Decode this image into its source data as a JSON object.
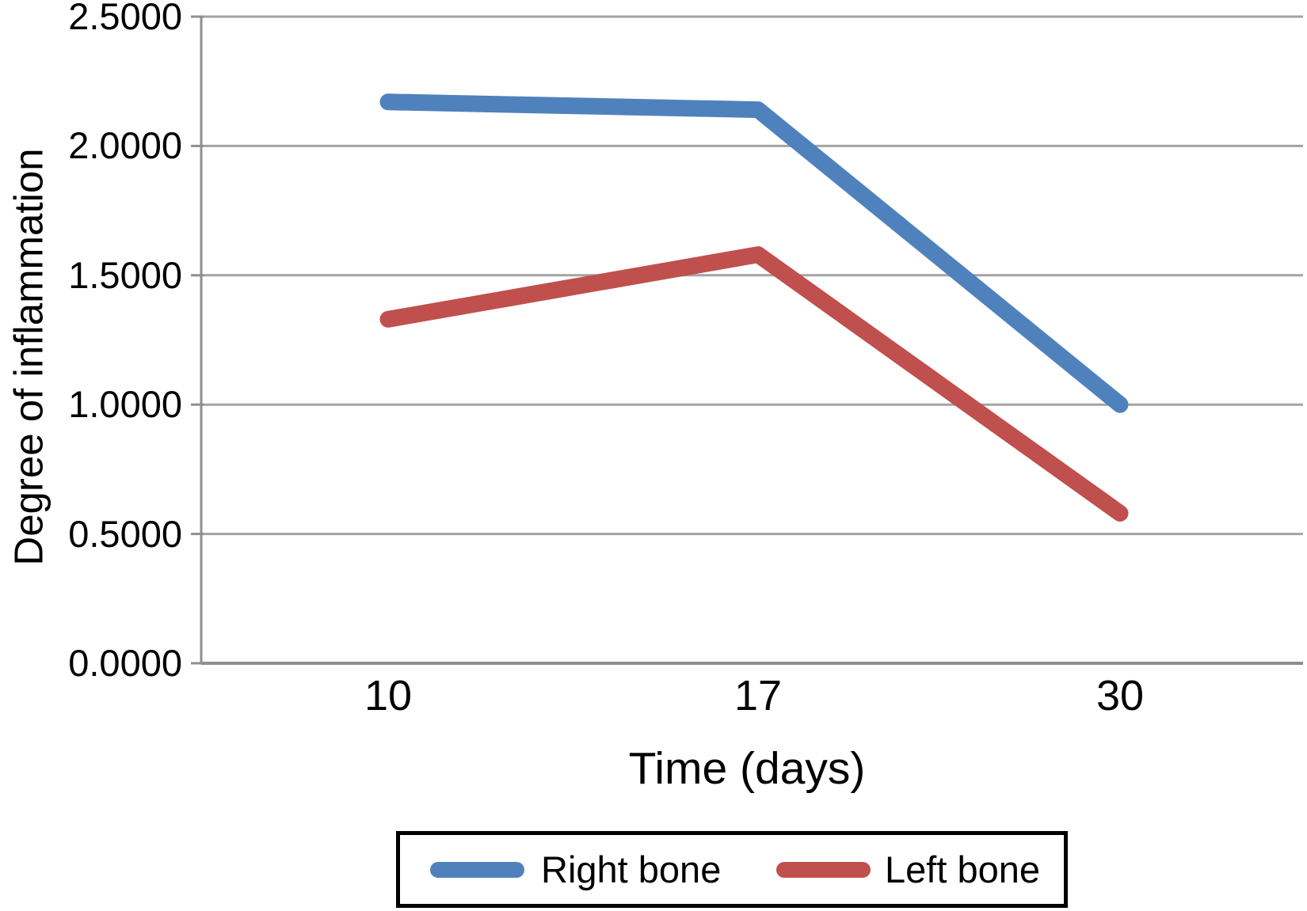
{
  "chart_data": {
    "type": "line",
    "categories": [
      "10",
      "17",
      "30"
    ],
    "series": [
      {
        "name": "Right bone",
        "color": "#4F81BD",
        "values": [
          2.17,
          2.14,
          1.0
        ]
      },
      {
        "name": "Left bone",
        "color": "#C0504D",
        "values": [
          1.33,
          1.58,
          0.58
        ]
      }
    ],
    "xlabel": "Time (days)",
    "ylabel": "Degree of inflammation",
    "ylim": [
      0.0,
      2.5
    ],
    "yticks": [
      0.0,
      0.5,
      1.0,
      1.5,
      2.0,
      2.5
    ],
    "ytick_labels": [
      "0.0000",
      "0.5000",
      "1.0000",
      "1.5000",
      "2.0000",
      "2.5000"
    ],
    "grid": true,
    "legend_position": "bottom",
    "colors": {
      "gridline": "#a3a3a3",
      "axis": "#8f8f8f",
      "text": "#000000",
      "legend_border": "#000000",
      "background": "#ffffff"
    }
  }
}
